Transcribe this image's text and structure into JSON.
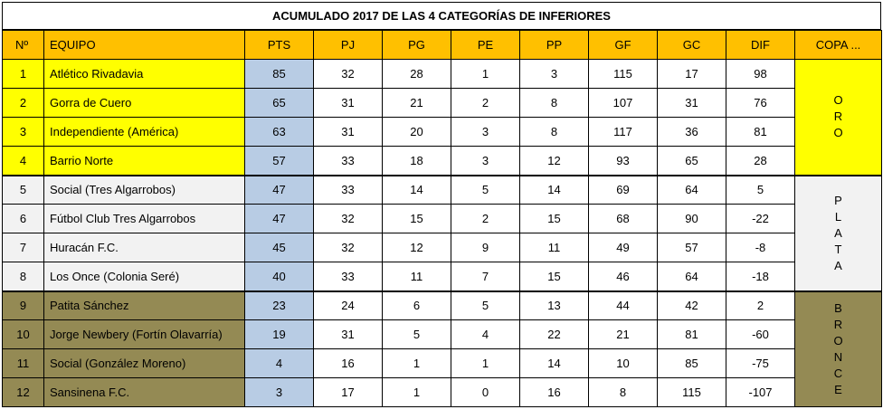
{
  "title": "ACUMULADO 2017 DE LAS 4 CATEGORÍAS DE INFERIORES",
  "headers": [
    "Nº",
    "EQUIPO",
    "PTS",
    "PJ",
    "PG",
    "PE",
    "PP",
    "GF",
    "GC",
    "DIF",
    "COPA ..."
  ],
  "rows": [
    {
      "n": "1",
      "equipo": "Atlético Rivadavia",
      "pts": "85",
      "pj": "32",
      "pg": "28",
      "pe": "1",
      "pp": "3",
      "gf": "115",
      "gc": "17",
      "dif": "98"
    },
    {
      "n": "2",
      "equipo": "Gorra de Cuero",
      "pts": "65",
      "pj": "31",
      "pg": "21",
      "pe": "2",
      "pp": "8",
      "gf": "107",
      "gc": "31",
      "dif": "76"
    },
    {
      "n": "3",
      "equipo": "Independiente (América)",
      "pts": "63",
      "pj": "31",
      "pg": "20",
      "pe": "3",
      "pp": "8",
      "gf": "117",
      "gc": "36",
      "dif": "81"
    },
    {
      "n": "4",
      "equipo": "Barrio Norte",
      "pts": "57",
      "pj": "33",
      "pg": "18",
      "pe": "3",
      "pp": "12",
      "gf": "93",
      "gc": "65",
      "dif": "28"
    },
    {
      "n": "5",
      "equipo": "Social (Tres Algarrobos)",
      "pts": "47",
      "pj": "33",
      "pg": "14",
      "pe": "5",
      "pp": "14",
      "gf": "69",
      "gc": "64",
      "dif": "5"
    },
    {
      "n": "6",
      "equipo": "Fútbol Club Tres Algarrobos",
      "pts": "47",
      "pj": "32",
      "pg": "15",
      "pe": "2",
      "pp": "15",
      "gf": "68",
      "gc": "90",
      "dif": "-22"
    },
    {
      "n": "7",
      "equipo": "Huracán F.C.",
      "pts": "45",
      "pj": "32",
      "pg": "12",
      "pe": "9",
      "pp": "11",
      "gf": "49",
      "gc": "57",
      "dif": "-8"
    },
    {
      "n": "8",
      "equipo": "Los Once (Colonia Seré)",
      "pts": "40",
      "pj": "33",
      "pg": "11",
      "pe": "7",
      "pp": "15",
      "gf": "46",
      "gc": "64",
      "dif": "-18"
    },
    {
      "n": "9",
      "equipo": "Patita Sánchez",
      "pts": "23",
      "pj": "24",
      "pg": "6",
      "pe": "5",
      "pp": "13",
      "gf": "44",
      "gc": "42",
      "dif": "2"
    },
    {
      "n": "10",
      "equipo": "Jorge Newbery (Fortín Olavarría)",
      "pts": "19",
      "pj": "31",
      "pg": "5",
      "pe": "4",
      "pp": "22",
      "gf": "21",
      "gc": "81",
      "dif": "-60"
    },
    {
      "n": "11",
      "equipo": "Social (González Moreno)",
      "pts": "4",
      "pj": "16",
      "pg": "1",
      "pe": "1",
      "pp": "14",
      "gf": "10",
      "gc": "85",
      "dif": "-75"
    },
    {
      "n": "12",
      "equipo": "Sansinena F.C.",
      "pts": "3",
      "pj": "17",
      "pg": "1",
      "pe": "0",
      "pp": "16",
      "gf": "8",
      "gc": "115",
      "dif": "-107"
    }
  ],
  "copas": [
    {
      "label": "ORO",
      "color": "#ffff00"
    },
    {
      "label": "PLATA",
      "color": "#f2f2f2"
    },
    {
      "label": "BRONCE",
      "color": "#948a54"
    }
  ],
  "colors": {
    "header": "#ffc000",
    "pts": "#b8cce4",
    "oro": "#ffff00",
    "plata": "#f2f2f2",
    "bronce": "#948a54"
  }
}
